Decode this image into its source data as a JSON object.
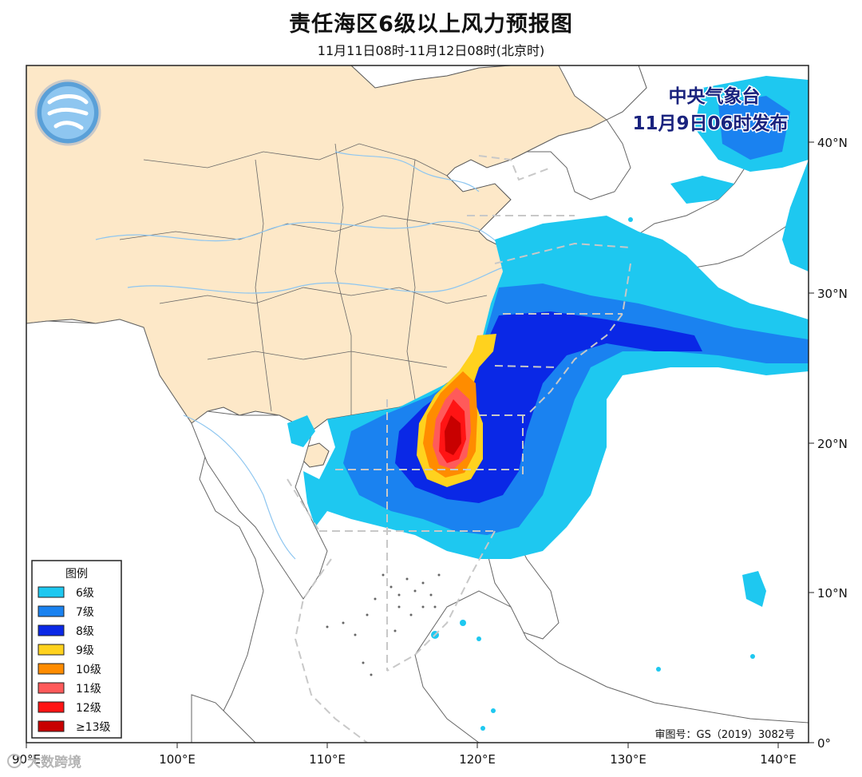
{
  "header": {
    "title": "责任海区6级以上风力预报图",
    "subtitle": "11月11日08时-11月12日08时(北京时)"
  },
  "issuer": {
    "name": "中央气象台",
    "issued": "11月9日06时发布",
    "color": "#1a237e"
  },
  "axes": {
    "lon_labels": [
      "90°E",
      "100°E",
      "110°E",
      "120°E",
      "130°E",
      "140°E"
    ],
    "lat_labels": [
      "0°",
      "10°N",
      "20°N",
      "30°N",
      "40°N"
    ]
  },
  "legend": {
    "title": "图例",
    "items": [
      {
        "label": "6级",
        "color": "#1ec8f0"
      },
      {
        "label": "7级",
        "color": "#1a82f0"
      },
      {
        "label": "8级",
        "color": "#0a28e6"
      },
      {
        "label": "9级",
        "color": "#ffd21e"
      },
      {
        "label": "10级",
        "color": "#ff8c00"
      },
      {
        "label": "11级",
        "color": "#ff5a5a"
      },
      {
        "label": "12级",
        "color": "#ff1414"
      },
      {
        "label": "≥13级",
        "color": "#c80000"
      }
    ]
  },
  "footer": {
    "approval": "审图号：GS（2019）3082号",
    "watermark": "大数跨境"
  },
  "colors": {
    "land_china": "#fde8c8",
    "sea": "#ffffff",
    "border": "#555555",
    "river": "#8ec6f0",
    "dashed": "#c8c8c8"
  }
}
